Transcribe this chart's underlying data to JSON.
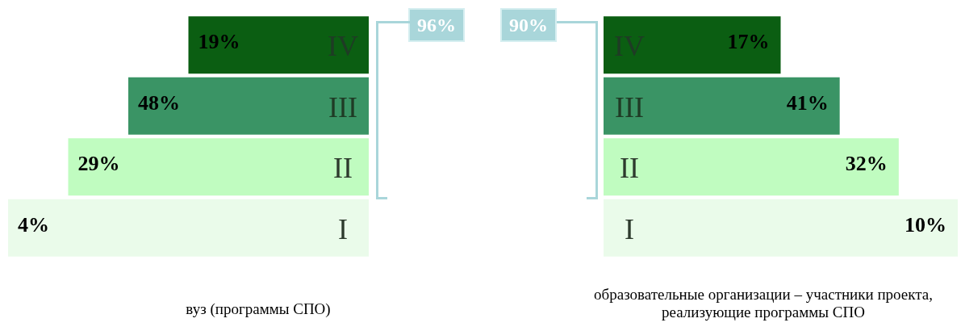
{
  "chart_data": [
    {
      "type": "other",
      "categories": [
        "IV",
        "III",
        "II",
        "I"
      ],
      "values": [
        19,
        48,
        29,
        4
      ],
      "value_labels": [
        "19%",
        "48%",
        "29%",
        "4%"
      ],
      "colors": [
        "#0b5e12",
        "#3a9465",
        "#c0fcc0",
        "#eafbea"
      ],
      "annotations": [
        "96%"
      ],
      "xlabel": "вуз (программы СПО)"
    },
    {
      "type": "other",
      "categories": [
        "IV",
        "III",
        "II",
        "I"
      ],
      "values": [
        17,
        41,
        32,
        10
      ],
      "value_labels": [
        "17%",
        "41%",
        "32%",
        "10%"
      ],
      "colors": [
        "#0b5e12",
        "#3a9465",
        "#c0fcc0",
        "#eafbea"
      ],
      "annotations": [
        "90%"
      ],
      "xlabel": "образовательные организации – участники проекта, реализующие программы СПО"
    }
  ]
}
